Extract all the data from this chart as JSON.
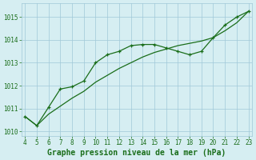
{
  "title": "Graphe pression niveau de la mer (hPa)",
  "x_min": 4,
  "x_max": 23,
  "y_min": 1009.8,
  "y_max": 1015.6,
  "y_ticks": [
    1010,
    1011,
    1012,
    1013,
    1014,
    1015
  ],
  "x_ticks": [
    4,
    5,
    6,
    7,
    8,
    9,
    10,
    11,
    12,
    13,
    14,
    15,
    16,
    17,
    18,
    19,
    20,
    21,
    22,
    23
  ],
  "series_upper_x": [
    4,
    5,
    6,
    7,
    8,
    9,
    10,
    11,
    12,
    13,
    14,
    15,
    16,
    17,
    18,
    19,
    20,
    21,
    22,
    23
  ],
  "series_upper_y": [
    1010.65,
    1010.25,
    1011.05,
    1011.85,
    1011.95,
    1012.2,
    1013.0,
    1013.35,
    1013.5,
    1013.75,
    1013.8,
    1013.8,
    1013.65,
    1013.5,
    1013.35,
    1013.5,
    1014.1,
    1014.65,
    1015.0,
    1015.25
  ],
  "series_lower_x": [
    4,
    5,
    6,
    7,
    8,
    9,
    10,
    11,
    12,
    13,
    14,
    15,
    16,
    17,
    18,
    19,
    20,
    21,
    22,
    23
  ],
  "series_lower_y": [
    1010.65,
    1010.25,
    1010.75,
    1011.1,
    1011.45,
    1011.75,
    1012.15,
    1012.45,
    1012.75,
    1013.0,
    1013.25,
    1013.45,
    1013.6,
    1013.75,
    1013.85,
    1013.95,
    1014.1,
    1014.4,
    1014.75,
    1015.25
  ],
  "line_color": "#1a6e1a",
  "bg_color": "#d6eef2",
  "grid_color": "#a0c8d8",
  "label_color": "#1a6e1a",
  "title_fontsize": 7.0,
  "tick_fontsize": 5.5
}
